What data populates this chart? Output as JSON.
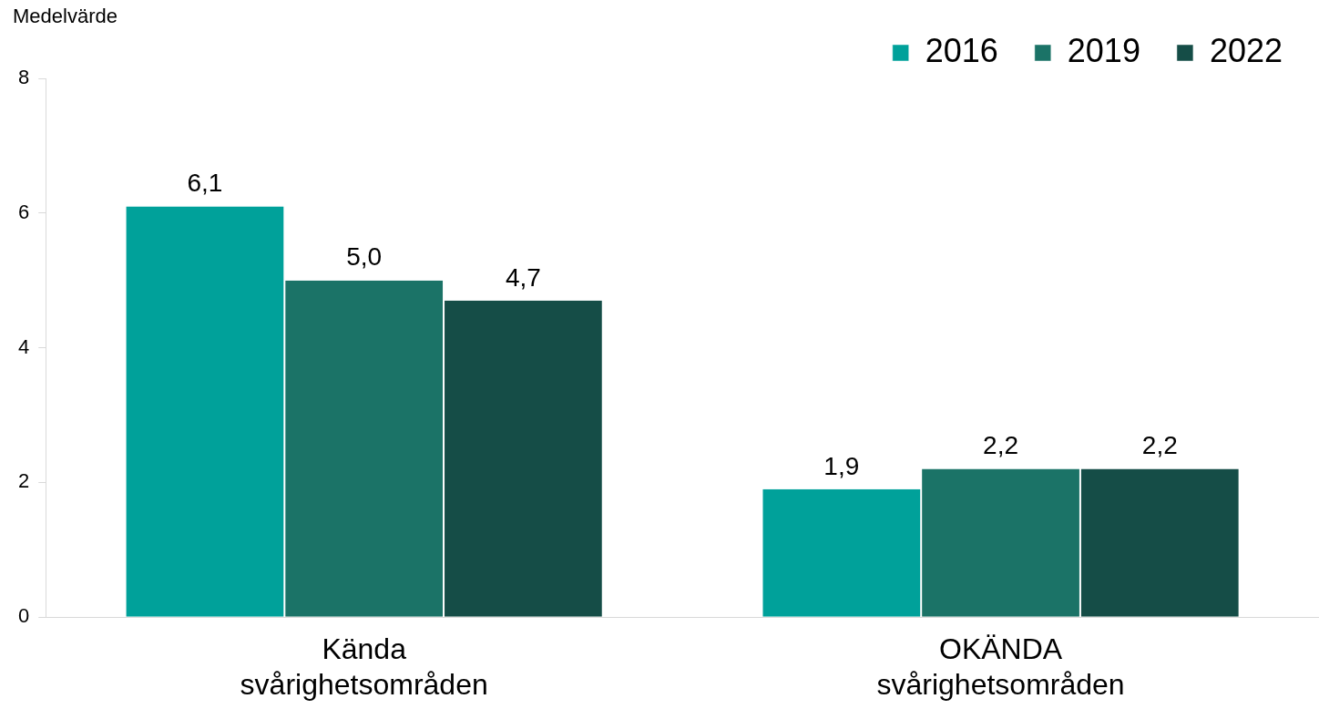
{
  "chart_data": {
    "type": "bar",
    "ylabel": "Medelvärde",
    "categories": [
      "Kända svårighetsområden",
      "OKÄNDA svårighetsområden"
    ],
    "series": [
      {
        "name": "2016",
        "color": "#00a19a",
        "values": [
          6.1,
          1.9
        ],
        "value_labels": [
          "6,1",
          "1,9"
        ]
      },
      {
        "name": "2019",
        "color": "#1b7367",
        "values": [
          5.0,
          2.2
        ],
        "value_labels": [
          "5,0",
          "2,2"
        ]
      },
      {
        "name": "2022",
        "color": "#154d47",
        "values": [
          4.7,
          2.2
        ],
        "value_labels": [
          "4,7",
          "2,2"
        ]
      }
    ],
    "ylim": [
      0,
      8
    ],
    "yticks": [
      0,
      2,
      4,
      6,
      8
    ],
    "grid": false,
    "legend": "top right"
  }
}
